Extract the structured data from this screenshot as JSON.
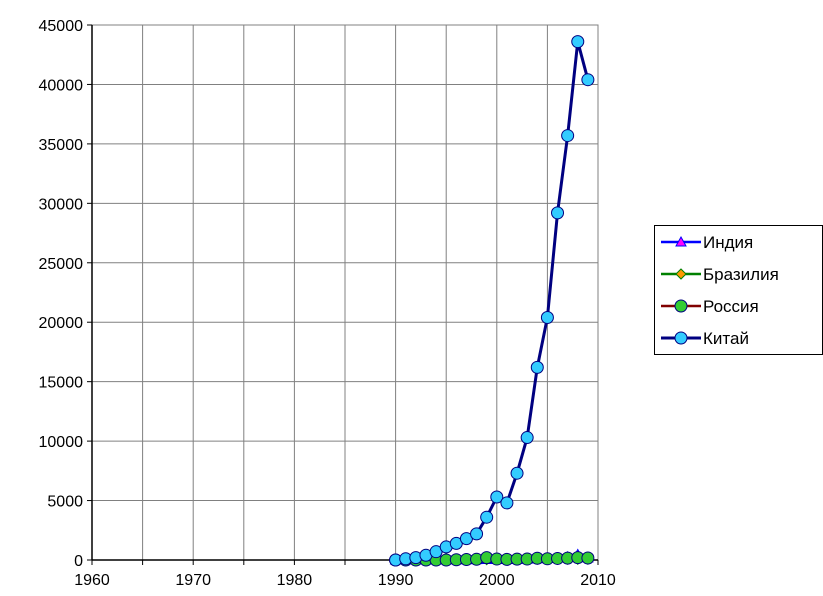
{
  "chart_data": {
    "type": "line",
    "title": "",
    "xlabel": "",
    "ylabel": "",
    "xlim": [
      1960,
      2010
    ],
    "ylim": [
      0,
      45000
    ],
    "x_ticks": [
      "1960",
      "1970",
      "1980",
      "1990",
      "2000",
      "2010"
    ],
    "y_ticks": [
      "0",
      "5000",
      "10000",
      "15000",
      "20000",
      "25000",
      "30000",
      "35000",
      "40000",
      "45000"
    ],
    "grid": true,
    "legend_position": "right",
    "series": [
      {
        "name": "Индия",
        "color": "#0000ff",
        "marker": "triangle",
        "marker_color": "#ff00ff",
        "x": [
          1990,
          1991,
          1992,
          1993,
          1994,
          1995,
          1996,
          1997,
          1998,
          1999,
          2000,
          2001,
          2002,
          2003,
          2004,
          2005,
          2006,
          2007,
          2008,
          2009
        ],
        "y": [
          0,
          0,
          0,
          0,
          10,
          20,
          20,
          30,
          30,
          40,
          40,
          40,
          50,
          70,
          100,
          130,
          170,
          260,
          460,
          180
        ]
      },
      {
        "name": "Бразилия",
        "color": "#008000",
        "marker": "diamond",
        "marker_color": "#ff9900",
        "x": [
          1990,
          1991,
          1992,
          1993,
          1994,
          1995,
          1996,
          1997,
          1998,
          1999,
          2000,
          2001,
          2002,
          2003,
          2004,
          2005,
          2006,
          2007,
          2008,
          2009
        ],
        "y": [
          0,
          0,
          0,
          30,
          80,
          130,
          60,
          50,
          40,
          30,
          40,
          40,
          40,
          50,
          60,
          60,
          60,
          60,
          60,
          60
        ]
      },
      {
        "name": "Россия",
        "color": "#800000",
        "marker": "circle",
        "marker_color": "#33cc33",
        "x": [
          1990,
          1991,
          1992,
          1993,
          1994,
          1995,
          1996,
          1997,
          1998,
          1999,
          2000,
          2001,
          2002,
          2003,
          2004,
          2005,
          2006,
          2007,
          2008,
          2009
        ],
        "y": [
          0,
          0,
          0,
          0,
          0,
          0,
          20,
          40,
          60,
          200,
          80,
          50,
          70,
          80,
          150,
          100,
          130,
          160,
          200,
          170
        ]
      },
      {
        "name": "Китай",
        "color": "#000080",
        "marker": "circle",
        "marker_color": "#33ccff",
        "x": [
          1990,
          1991,
          1992,
          1993,
          1994,
          1995,
          1996,
          1997,
          1998,
          1999,
          2000,
          2001,
          2002,
          2003,
          2004,
          2005,
          2006,
          2007,
          2008,
          2009
        ],
        "y": [
          0,
          100,
          200,
          400,
          700,
          1100,
          1400,
          1800,
          2200,
          3600,
          5300,
          4800,
          7300,
          10300,
          16200,
          20400,
          29200,
          35700,
          43600,
          40400
        ]
      }
    ]
  }
}
